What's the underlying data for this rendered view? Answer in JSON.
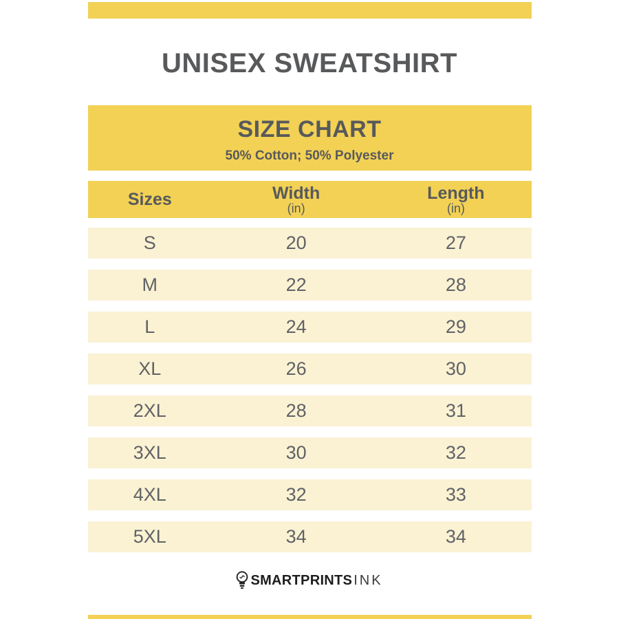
{
  "colors": {
    "accent": "#F2D155",
    "row_bg": "#FBF2D4",
    "heading_text": "#58595B",
    "row_text": "#606265",
    "brand_text": "#1D1D1F"
  },
  "header": {
    "title": "UNISEX SWEATSHIRT"
  },
  "chart_header": {
    "title": "SIZE CHART",
    "subtitle": "50% Cotton; 50% Polyester"
  },
  "table": {
    "columns": [
      {
        "label": "Sizes",
        "unit": ""
      },
      {
        "label": "Width",
        "unit": "(in)"
      },
      {
        "label": "Length",
        "unit": "(in)"
      }
    ],
    "rows": [
      {
        "size": "S",
        "width": "20",
        "length": "27"
      },
      {
        "size": "M",
        "width": "22",
        "length": "28"
      },
      {
        "size": "L",
        "width": "24",
        "length": "29"
      },
      {
        "size": "XL",
        "width": "26",
        "length": "30"
      },
      {
        "size": "2XL",
        "width": "28",
        "length": "31"
      },
      {
        "size": "3XL",
        "width": "30",
        "length": "32"
      },
      {
        "size": "4XL",
        "width": "32",
        "length": "33"
      },
      {
        "size": "5XL",
        "width": "34",
        "length": "34"
      }
    ]
  },
  "footer": {
    "brand_bold": "SMARTPRINTS",
    "brand_light": "INK",
    "icon": "lightbulb-icon"
  },
  "chart_data": {
    "type": "table",
    "title": "SIZE CHART",
    "subtitle": "50% Cotton; 50% Polyester",
    "product": "UNISEX SWEATSHIRT",
    "columns": [
      "Sizes",
      "Width (in)",
      "Length (in)"
    ],
    "rows": [
      [
        "S",
        20,
        27
      ],
      [
        "M",
        22,
        28
      ],
      [
        "L",
        24,
        29
      ],
      [
        "XL",
        26,
        30
      ],
      [
        "2XL",
        28,
        31
      ],
      [
        "3XL",
        30,
        32
      ],
      [
        "4XL",
        32,
        33
      ],
      [
        "5XL",
        34,
        34
      ]
    ]
  }
}
